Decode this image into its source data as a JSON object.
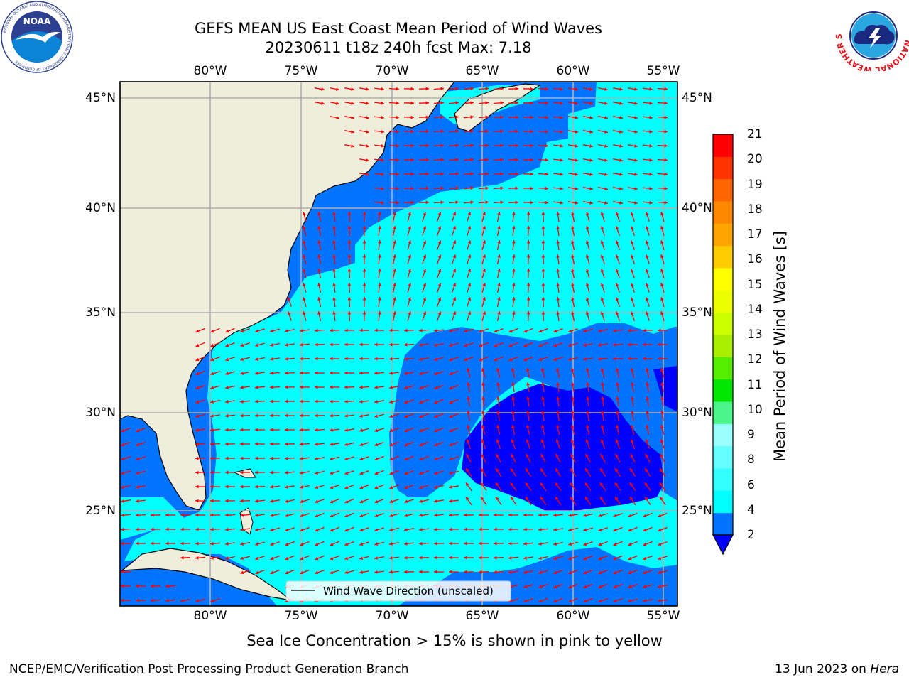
{
  "header": {
    "title_line1": "GEFS MEAN US East Coast Mean Period of Wind Waves",
    "title_line2": "20230611 t18z 240h fcst   Max: 7.18"
  },
  "logos": {
    "left": {
      "text": "NOAA",
      "ring_text": "NATIONAL OCEANIC AND ATMOSPHERIC ADMINISTRATION",
      "ring_text_bottom": "U.S. DEPARTMENT OF COMMERCE"
    },
    "right": {
      "ring_text": "NATIONAL WEATHER SERVICE"
    }
  },
  "map": {
    "lon_ticks": [
      "80°W",
      "75°W",
      "70°W",
      "65°W",
      "60°W",
      "55°W"
    ],
    "lat_ticks": [
      "45°N",
      "40°N",
      "35°N",
      "30°N",
      "25°N"
    ],
    "legend_label": "Wind Wave Direction (unscaled)",
    "land_color": "#efeedc",
    "arrow_color": "#ff0000"
  },
  "colorbar": {
    "title": "Mean Period of Wind Waves [s]",
    "ticks": [
      "21",
      "20",
      "19",
      "18",
      "17",
      "16",
      "15",
      "14",
      "13",
      "12",
      "11",
      "10",
      "9",
      "8",
      "6",
      "4",
      "2"
    ],
    "colors_bottom_to_top": [
      "#0073ff",
      "#00ffff",
      "#33ffff",
      "#66ffff",
      "#99ffff",
      "#4cf58a",
      "#00e600",
      "#55ee00",
      "#aaee00",
      "#ccff00",
      "#eeff00",
      "#ffff00",
      "#ffcc00",
      "#ffa500",
      "#ff8800",
      "#ff6600",
      "#ff3300",
      "#ff0000"
    ],
    "underflow_color": "#0000ff"
  },
  "footer": {
    "note": "Sea Ice Concentration > 15% is shown in pink to yellow",
    "left": "NCEP/EMC/Verification Post Processing Product Generation Branch",
    "right_date": "13 Jun 2023 on ",
    "right_host": "Hera"
  }
}
